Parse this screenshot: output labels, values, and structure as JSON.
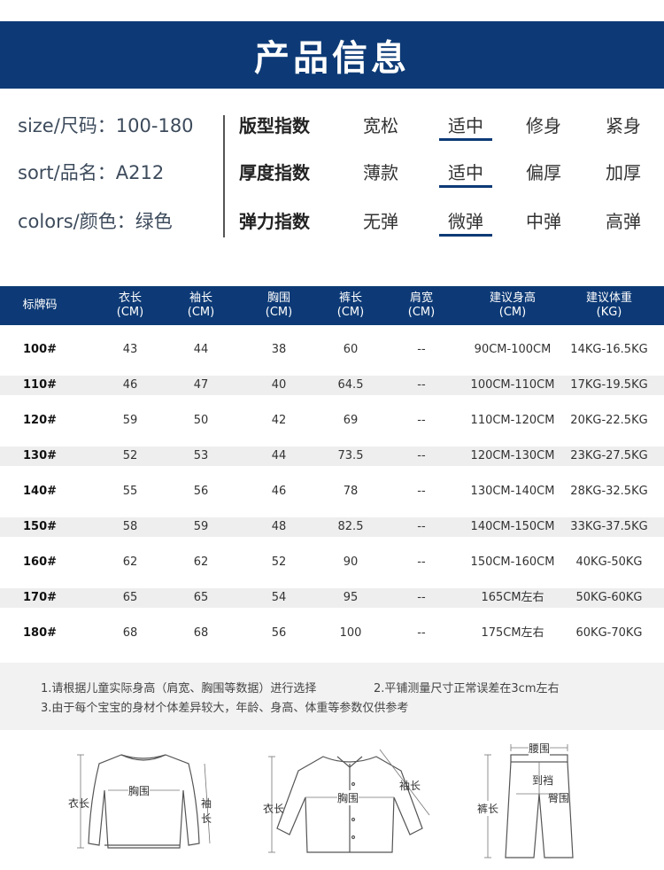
{
  "header": {
    "title": "产品信息"
  },
  "basic": [
    {
      "label": "size/尺码：",
      "value": "100-180"
    },
    {
      "label": "sort/品名：",
      "value": "A212"
    },
    {
      "label": "colors/颜色：",
      "value": "绿色"
    }
  ],
  "indices": [
    {
      "label": "版型指数",
      "options": [
        "宽松",
        "适中",
        "修身",
        "紧身"
      ],
      "selected": 1
    },
    {
      "label": "厚度指数",
      "options": [
        "薄款",
        "适中",
        "偏厚",
        "加厚"
      ],
      "selected": 1
    },
    {
      "label": "弹力指数",
      "options": [
        "无弹",
        "微弹",
        "中弹",
        "高弹"
      ],
      "selected": 1
    }
  ],
  "table": {
    "headers": [
      {
        "line1": "标牌码",
        "line2": ""
      },
      {
        "line1": "衣长",
        "line2": "(CM)"
      },
      {
        "line1": "袖长",
        "line2": "(CM)"
      },
      {
        "line1": "胸围",
        "line2": "(CM)"
      },
      {
        "line1": "裤长",
        "line2": "(CM)"
      },
      {
        "line1": "肩宽",
        "line2": "(CM)"
      },
      {
        "line1": "建议身高",
        "line2": "(CM)"
      },
      {
        "line1": "建议体重",
        "line2": "(KG)"
      }
    ],
    "rows": [
      [
        "100#",
        "43",
        "44",
        "38",
        "60",
        "--",
        "90CM-100CM",
        "14KG-16.5KG"
      ],
      [
        "110#",
        "46",
        "47",
        "40",
        "64.5",
        "--",
        "100CM-110CM",
        "17KG-19.5KG"
      ],
      [
        "120#",
        "59",
        "50",
        "42",
        "69",
        "--",
        "110CM-120CM",
        "20KG-22.5KG"
      ],
      [
        "130#",
        "52",
        "53",
        "44",
        "73.5",
        "--",
        "120CM-130CM",
        "23KG-27.5KG"
      ],
      [
        "140#",
        "55",
        "56",
        "46",
        "78",
        "--",
        "130CM-140CM",
        "28KG-32.5KG"
      ],
      [
        "150#",
        "58",
        "59",
        "48",
        "82.5",
        "--",
        "140CM-150CM",
        "33KG-37.5KG"
      ],
      [
        "160#",
        "62",
        "62",
        "52",
        "90",
        "--",
        "150CM-160CM",
        "40KG-50KG"
      ],
      [
        "170#",
        "65",
        "65",
        "54",
        "95",
        "--",
        "165CM左右",
        "50KG-60KG"
      ],
      [
        "180#",
        "68",
        "68",
        "56",
        "100",
        "--",
        "175CM左右",
        "60KG-70KG"
      ]
    ]
  },
  "notes": [
    "1.请根据儿童实际身高（肩宽、胸围等数据）进行选择",
    "2.平铺测量尺寸正常误差在3cm左右",
    "3.由于每个宝宝的身材个体差异较大，年龄、身高、体重等参数仅供参考"
  ],
  "diagrams": {
    "shirt": {
      "length": "衣长",
      "chest": "胸围",
      "sleeve": "袖长"
    },
    "jacket": {
      "length": "衣长",
      "chest": "胸围",
      "sleeve": "袖长"
    },
    "pants": {
      "waist": "腰围",
      "rise": "到裆",
      "hip": "臀围",
      "length": "裤长"
    }
  },
  "colors": {
    "brand": "#0d3a76",
    "row_shade": "#eeeeee",
    "notes_bg": "#f2f2f2"
  }
}
